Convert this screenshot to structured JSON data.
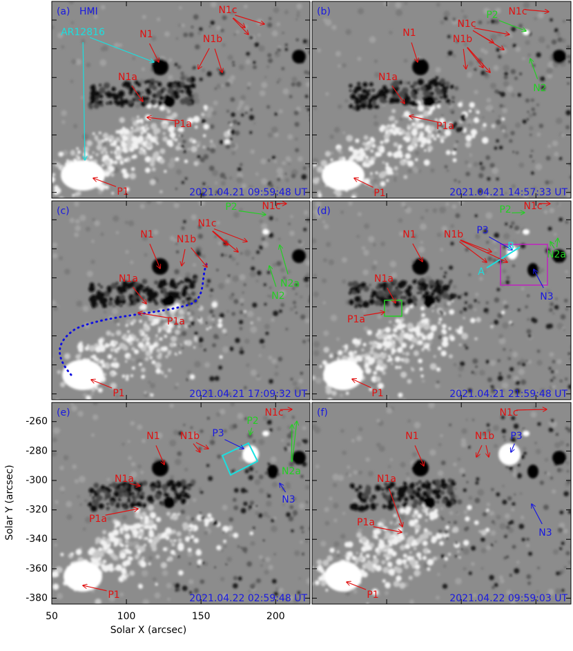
{
  "figure": {
    "x_label": "Solar X (arcsec)",
    "y_label": "Solar Y (arcsec)",
    "xlim": [
      50,
      223
    ],
    "xticks": [
      50,
      100,
      150,
      200
    ],
    "ylim": [
      -384,
      -247
    ],
    "yticks": [
      -260,
      -280,
      -300,
      -320,
      -340,
      -360,
      -380
    ],
    "panels": [
      {
        "label": "(a)",
        "instrument": "HMI",
        "timestamp": "2021.04.21 09:59:48 UT",
        "annotations": [
          {
            "text": "AR12816",
            "color": "#19e0e0"
          },
          {
            "text": "N1",
            "color": "#e01010"
          },
          {
            "text": "N1c",
            "color": "#e01010"
          },
          {
            "text": "N1b",
            "color": "#e01010"
          },
          {
            "text": "N1a",
            "color": "#e01010"
          },
          {
            "text": "P1a",
            "color": "#e01010"
          },
          {
            "text": "P1",
            "color": "#e01010"
          }
        ]
      },
      {
        "label": "(b)",
        "timestamp": "2021.04.21 14:57:33 UT",
        "annotations": [
          {
            "text": "N1c",
            "color": "#e01010"
          },
          {
            "text": "P2",
            "color": "#22d022"
          },
          {
            "text": "N1",
            "color": "#e01010"
          },
          {
            "text": "N1c",
            "color": "#e01010"
          },
          {
            "text": "N1b",
            "color": "#e01010"
          },
          {
            "text": "N1a",
            "color": "#e01010"
          },
          {
            "text": "N2",
            "color": "#22d022"
          },
          {
            "text": "P1a",
            "color": "#e01010"
          },
          {
            "text": "P1",
            "color": "#e01010"
          }
        ]
      },
      {
        "label": "(c)",
        "timestamp": "2021.04.21 17:09:32 UT",
        "annotations": [
          {
            "text": "N1c",
            "color": "#e01010"
          },
          {
            "text": "P2",
            "color": "#22d022"
          },
          {
            "text": "N1",
            "color": "#e01010"
          },
          {
            "text": "N1c",
            "color": "#e01010"
          },
          {
            "text": "N1b",
            "color": "#e01010"
          },
          {
            "text": "N2a",
            "color": "#22d022"
          },
          {
            "text": "N1a",
            "color": "#e01010"
          },
          {
            "text": "N2",
            "color": "#22d022"
          },
          {
            "text": "P1a",
            "color": "#e01010"
          },
          {
            "text": "P1",
            "color": "#e01010"
          }
        ]
      },
      {
        "label": "(d)",
        "timestamp": "2021.04.21 21:59:48 UT",
        "annotations": [
          {
            "text": "N1c",
            "color": "#e01010"
          },
          {
            "text": "P2",
            "color": "#22d022"
          },
          {
            "text": "N1",
            "color": "#e01010"
          },
          {
            "text": "N1b",
            "color": "#e01010"
          },
          {
            "text": "P3",
            "color": "#1818e0"
          },
          {
            "text": "B",
            "color": "#19e0e0"
          },
          {
            "text": "N2a",
            "color": "#22d022"
          },
          {
            "text": "A",
            "color": "#19e0e0"
          },
          {
            "text": "N1a",
            "color": "#e01010"
          },
          {
            "text": "N3",
            "color": "#1818e0"
          },
          {
            "text": "P1a",
            "color": "#e01010"
          },
          {
            "text": "P1",
            "color": "#e01010"
          }
        ]
      },
      {
        "label": "(e)",
        "timestamp": "2021.04.22 02:59:48 UT",
        "annotations": [
          {
            "text": "N1c",
            "color": "#e01010"
          },
          {
            "text": "P2",
            "color": "#22d022"
          },
          {
            "text": "N1",
            "color": "#e01010"
          },
          {
            "text": "N1b",
            "color": "#e01010"
          },
          {
            "text": "P3",
            "color": "#1818e0"
          },
          {
            "text": "N2a",
            "color": "#22d022"
          },
          {
            "text": "N1a",
            "color": "#e01010"
          },
          {
            "text": "N3",
            "color": "#1818e0"
          },
          {
            "text": "P1a",
            "color": "#e01010"
          },
          {
            "text": "P1",
            "color": "#e01010"
          }
        ]
      },
      {
        "label": "(f)",
        "timestamp": "2021.04.22 09:59:03 UT",
        "annotations": [
          {
            "text": "N1c",
            "color": "#e01010"
          },
          {
            "text": "N1",
            "color": "#e01010"
          },
          {
            "text": "N1b",
            "color": "#e01010"
          },
          {
            "text": "P3",
            "color": "#1818e0"
          },
          {
            "text": "N1a",
            "color": "#e01010"
          },
          {
            "text": "N3",
            "color": "#1818e0"
          },
          {
            "text": "P1a",
            "color": "#e01010"
          },
          {
            "text": "P1",
            "color": "#e01010"
          }
        ]
      }
    ]
  }
}
